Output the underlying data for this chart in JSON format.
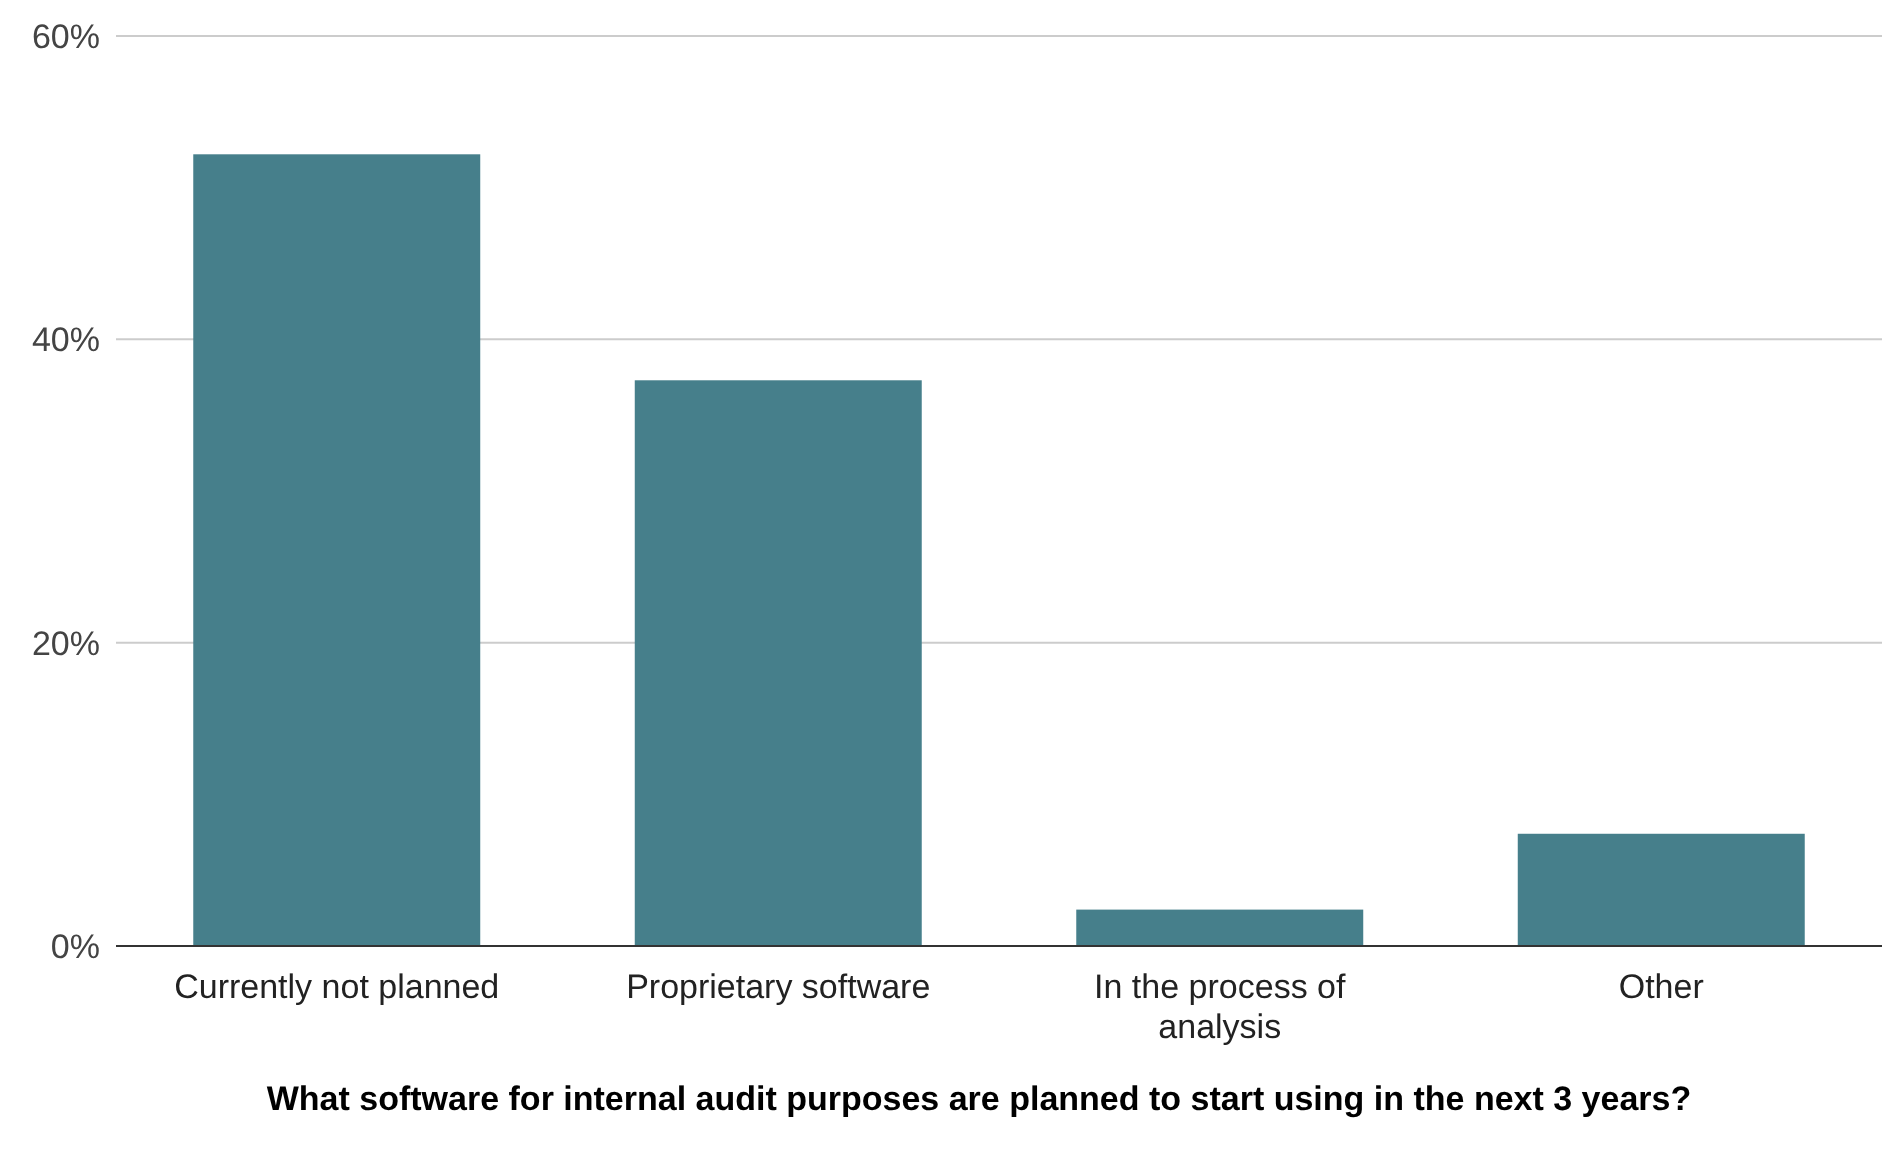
{
  "chart_data": {
    "type": "bar",
    "xlabel": "What software for internal audit purposes are planned to start using in the next 3 years?",
    "categories": [
      "Currently not planned",
      "Proprietary software",
      "In the process of analysis",
      "Other"
    ],
    "values": [
      52.2,
      37.3,
      2.4,
      7.4
    ],
    "color": "#467f8b",
    "ylim": [
      0,
      60
    ],
    "yticks": [
      {
        "value": 0,
        "label": "0%"
      },
      {
        "value": 20,
        "label": "20%"
      },
      {
        "value": 40,
        "label": "40%"
      },
      {
        "value": 60,
        "label": "60%"
      }
    ],
    "grid": "y"
  }
}
